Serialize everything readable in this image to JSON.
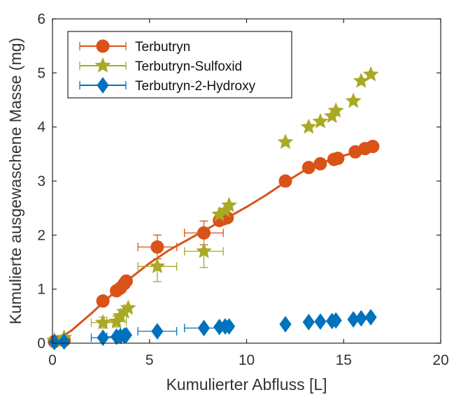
{
  "chart_data": {
    "type": "scatter",
    "title": "",
    "xlabel": "Kumulierter Abfluss [L]",
    "ylabel": "Kumulierte ausgewaschene Masse (mg)",
    "xlim": [
      0,
      20
    ],
    "ylim": [
      0,
      6
    ],
    "xticks": [
      "0",
      "5",
      "10",
      "15",
      "20"
    ],
    "yticks": [
      "0",
      "1",
      "2",
      "3",
      "4",
      "5",
      "6"
    ],
    "grid": false,
    "legend": {
      "position": "top-left"
    },
    "series": [
      {
        "name": "Terbutryn",
        "color": "#D95319",
        "marker": "circle",
        "points": [
          {
            "x": 0.1,
            "y": 0.03
          },
          {
            "x": 0.6,
            "y": 0.05
          },
          {
            "x": 2.6,
            "y": 0.78,
            "xerr": 0.0,
            "yerr": 0.08
          },
          {
            "x": 3.3,
            "y": 0.97
          },
          {
            "x": 3.5,
            "y": 1.02
          },
          {
            "x": 3.7,
            "y": 1.1
          },
          {
            "x": 3.8,
            "y": 1.15
          },
          {
            "x": 5.4,
            "y": 1.78,
            "xerr": 1.0,
            "yerr": 0.22
          },
          {
            "x": 7.8,
            "y": 2.04,
            "xerr": 1.0,
            "yerr": 0.22
          },
          {
            "x": 8.6,
            "y": 2.27
          },
          {
            "x": 8.8,
            "y": 2.3
          },
          {
            "x": 9.0,
            "y": 2.32
          },
          {
            "x": 12.0,
            "y": 3.0
          },
          {
            "x": 13.2,
            "y": 3.25
          },
          {
            "x": 13.8,
            "y": 3.32
          },
          {
            "x": 14.5,
            "y": 3.4
          },
          {
            "x": 14.7,
            "y": 3.42
          },
          {
            "x": 15.6,
            "y": 3.54
          },
          {
            "x": 16.1,
            "y": 3.6
          },
          {
            "x": 16.5,
            "y": 3.64
          }
        ],
        "fit_line": [
          {
            "x": 0,
            "y": 0
          },
          {
            "x": 1,
            "y": 0.24
          },
          {
            "x": 2,
            "y": 0.55
          },
          {
            "x": 3,
            "y": 0.88
          },
          {
            "x": 4,
            "y": 1.2
          },
          {
            "x": 5,
            "y": 1.48
          },
          {
            "x": 6,
            "y": 1.72
          },
          {
            "x": 7,
            "y": 1.92
          },
          {
            "x": 8,
            "y": 2.12
          },
          {
            "x": 9,
            "y": 2.32
          },
          {
            "x": 10,
            "y": 2.52
          },
          {
            "x": 11,
            "y": 2.74
          },
          {
            "x": 12,
            "y": 2.98
          },
          {
            "x": 13,
            "y": 3.2
          },
          {
            "x": 14,
            "y": 3.35
          },
          {
            "x": 15,
            "y": 3.47
          },
          {
            "x": 16,
            "y": 3.57
          },
          {
            "x": 16.5,
            "y": 3.63
          }
        ]
      },
      {
        "name": "Terbutryn-Sulfoxid",
        "color": "#A9A926",
        "marker": "star",
        "points": [
          {
            "x": 0.1,
            "y": 0.05
          },
          {
            "x": 0.6,
            "y": 0.1
          },
          {
            "x": 2.6,
            "y": 0.38,
            "xerr": 0.6,
            "yerr": 0.1
          },
          {
            "x": 3.3,
            "y": 0.4,
            "xerr": 0.5,
            "yerr": 0.1
          },
          {
            "x": 3.5,
            "y": 0.5
          },
          {
            "x": 3.7,
            "y": 0.58
          },
          {
            "x": 3.9,
            "y": 0.65
          },
          {
            "x": 5.4,
            "y": 1.42,
            "xerr": 1.0,
            "yerr": 0.28
          },
          {
            "x": 7.8,
            "y": 1.7,
            "xerr": 1.0,
            "yerr": 0.3
          },
          {
            "x": 8.6,
            "y": 2.38
          },
          {
            "x": 8.9,
            "y": 2.45
          },
          {
            "x": 9.1,
            "y": 2.55
          },
          {
            "x": 12.0,
            "y": 3.72
          },
          {
            "x": 13.2,
            "y": 4.0
          },
          {
            "x": 13.8,
            "y": 4.1
          },
          {
            "x": 14.4,
            "y": 4.2
          },
          {
            "x": 14.6,
            "y": 4.3
          },
          {
            "x": 15.5,
            "y": 4.48
          },
          {
            "x": 15.9,
            "y": 4.85
          },
          {
            "x": 16.4,
            "y": 4.97
          }
        ]
      },
      {
        "name": "Terbutryn-2-Hydroxy",
        "color": "#0072BD",
        "marker": "diamond",
        "points": [
          {
            "x": 0.1,
            "y": 0.02
          },
          {
            "x": 0.6,
            "y": 0.03
          },
          {
            "x": 2.6,
            "y": 0.1,
            "xerr": 0.6,
            "yerr": 0.02
          },
          {
            "x": 3.3,
            "y": 0.12,
            "xerr": 0.5,
            "yerr": 0.02
          },
          {
            "x": 3.5,
            "y": 0.13
          },
          {
            "x": 3.7,
            "y": 0.14
          },
          {
            "x": 3.8,
            "y": 0.15
          },
          {
            "x": 5.4,
            "y": 0.22,
            "xerr": 1.0,
            "yerr": 0.03
          },
          {
            "x": 7.8,
            "y": 0.28,
            "xerr": 1.0,
            "yerr": 0.03
          },
          {
            "x": 8.6,
            "y": 0.3
          },
          {
            "x": 8.9,
            "y": 0.31
          },
          {
            "x": 9.1,
            "y": 0.31
          },
          {
            "x": 12.0,
            "y": 0.35
          },
          {
            "x": 13.2,
            "y": 0.39
          },
          {
            "x": 13.8,
            "y": 0.4
          },
          {
            "x": 14.4,
            "y": 0.41
          },
          {
            "x": 14.6,
            "y": 0.42
          },
          {
            "x": 15.5,
            "y": 0.44
          },
          {
            "x": 15.9,
            "y": 0.46
          },
          {
            "x": 16.4,
            "y": 0.48
          }
        ]
      }
    ]
  }
}
